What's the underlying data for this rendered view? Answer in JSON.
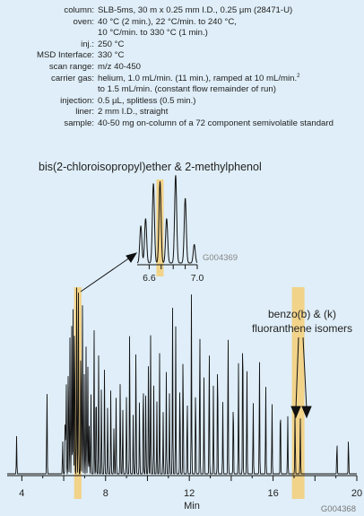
{
  "conditions": [
    {
      "key": "column:",
      "value": "SLB-5ms, 30 m x 0.25 mm I.D., 0.25 µm (28471-U)"
    },
    {
      "key": "oven:",
      "value": "40 °C (2 min.), 22 °C/min. to 240 °C,"
    },
    {
      "key": "",
      "value": "10 °C/min. to 330 °C (1 min.)"
    },
    {
      "key": "inj.:",
      "value": "250 °C"
    },
    {
      "key": "MSD Interface:",
      "value": "330 °C"
    },
    {
      "key": "scan range:",
      "value": "m/z 40-450"
    },
    {
      "key": "carrier gas:",
      "value": "helium, 1.0 mL/min. (11 min.), ramped at 10 mL/min.",
      "sup": "2"
    },
    {
      "key": "",
      "value": "to 1.5 mL/min.  (constant flow remainder of run)"
    },
    {
      "key": "injection:",
      "value": "0.5 µL, splitless (0.5 min.)"
    },
    {
      "key": "liner:",
      "value": "2 mm I.D., straight"
    },
    {
      "key": "sample:",
      "value": "40-50 mg on-column of a 72 component semivolatile standard"
    }
  ],
  "colors": {
    "trace": "#111111",
    "highlight": "#f2d38a",
    "background": "#dfeef8",
    "code": "#888888"
  },
  "chart_data": [
    {
      "type": "line",
      "title": "",
      "xlabel": "Min",
      "ylabel": "",
      "xlim": [
        3.3,
        20
      ],
      "ylim": [
        0,
        100
      ],
      "xticks": [
        4,
        8,
        12,
        16,
        20
      ],
      "xtick_labels": [
        "4",
        "8",
        "12",
        "16",
        "20"
      ],
      "grid": false,
      "figure_code": "G004368",
      "highlights": [
        {
          "from": 6.5,
          "to": 6.85
        },
        {
          "from": 16.9,
          "to": 17.5
        }
      ],
      "peaks": [
        {
          "t": 3.75,
          "h": 14
        },
        {
          "t": 5.2,
          "h": 33
        },
        {
          "t": 5.95,
          "h": 13
        },
        {
          "t": 6.07,
          "h": 23
        },
        {
          "t": 6.12,
          "h": 38
        },
        {
          "t": 6.22,
          "h": 46
        },
        {
          "t": 6.3,
          "h": 52
        },
        {
          "t": 6.38,
          "h": 57
        },
        {
          "t": 6.45,
          "h": 63
        },
        {
          "t": 6.52,
          "h": 66
        },
        {
          "t": 6.62,
          "h": 70
        },
        {
          "t": 6.7,
          "h": 72
        },
        {
          "t": 6.82,
          "h": 55
        },
        {
          "t": 6.9,
          "h": 65
        },
        {
          "t": 6.98,
          "h": 38
        },
        {
          "t": 7.07,
          "h": 48
        },
        {
          "t": 7.15,
          "h": 42
        },
        {
          "t": 7.22,
          "h": 18
        },
        {
          "t": 7.3,
          "h": 31
        },
        {
          "t": 7.45,
          "h": 56
        },
        {
          "t": 7.55,
          "h": 37
        },
        {
          "t": 7.67,
          "h": 45
        },
        {
          "t": 7.8,
          "h": 33
        },
        {
          "t": 7.95,
          "h": 41
        },
        {
          "t": 8.1,
          "h": 26
        },
        {
          "t": 8.25,
          "h": 33
        },
        {
          "t": 8.4,
          "h": 18
        },
        {
          "t": 8.5,
          "h": 29
        },
        {
          "t": 8.7,
          "h": 36
        },
        {
          "t": 8.82,
          "h": 25
        },
        {
          "t": 9.0,
          "h": 31
        },
        {
          "t": 9.15,
          "h": 56
        },
        {
          "t": 9.32,
          "h": 23
        },
        {
          "t": 9.45,
          "h": 49
        },
        {
          "t": 9.62,
          "h": 28
        },
        {
          "t": 9.8,
          "h": 39
        },
        {
          "t": 9.92,
          "h": 31
        },
        {
          "t": 10.05,
          "h": 45
        },
        {
          "t": 10.15,
          "h": 52
        },
        {
          "t": 10.3,
          "h": 33
        },
        {
          "t": 10.45,
          "h": 27
        },
        {
          "t": 10.58,
          "h": 45
        },
        {
          "t": 10.75,
          "h": 23
        },
        {
          "t": 10.9,
          "h": 38
        },
        {
          "t": 11.05,
          "h": 30
        },
        {
          "t": 11.2,
          "h": 62
        },
        {
          "t": 11.35,
          "h": 55
        },
        {
          "t": 11.55,
          "h": 36
        },
        {
          "t": 11.7,
          "h": 49
        },
        {
          "t": 11.9,
          "h": 30
        },
        {
          "t": 12.1,
          "h": 67
        },
        {
          "t": 12.3,
          "h": 35
        },
        {
          "t": 12.5,
          "h": 58
        },
        {
          "t": 12.7,
          "h": 36
        },
        {
          "t": 12.95,
          "h": 50
        },
        {
          "t": 13.15,
          "h": 33
        },
        {
          "t": 13.35,
          "h": 48
        },
        {
          "t": 13.6,
          "h": 27
        },
        {
          "t": 13.85,
          "h": 55
        },
        {
          "t": 14.1,
          "h": 31
        },
        {
          "t": 14.35,
          "h": 42
        },
        {
          "t": 14.55,
          "h": 62
        },
        {
          "t": 14.75,
          "h": 41
        },
        {
          "t": 15.05,
          "h": 28
        },
        {
          "t": 15.35,
          "h": 44
        },
        {
          "t": 15.65,
          "h": 34
        },
        {
          "t": 15.95,
          "h": 27
        },
        {
          "t": 16.35,
          "h": 29
        },
        {
          "t": 16.7,
          "h": 22
        },
        {
          "t": 17.05,
          "h": 25
        },
        {
          "t": 17.3,
          "h": 21
        },
        {
          "t": 19.05,
          "h": 13
        },
        {
          "t": 19.6,
          "h": 14
        }
      ],
      "annotations": [
        {
          "text": "benzo(b) & (k)",
          "x": 17.15,
          "y": 69
        },
        {
          "text": "fluoranthene isomers",
          "x": 17.15,
          "y": 64
        }
      ]
    },
    {
      "type": "line",
      "title": "bis(2-chloroisopropyl)ether & 2-methylphenol",
      "xlabel": "",
      "ylabel": "",
      "xlim": [
        6.5,
        7.0
      ],
      "ylim": [
        0,
        100
      ],
      "xticks": [
        6.6,
        7.0
      ],
      "xtick_labels": [
        "6.6",
        "7.0"
      ],
      "figure_code": "G004369",
      "highlights": [
        {
          "from": 6.66,
          "to": 6.72
        }
      ],
      "peaks": [
        {
          "t": 6.53,
          "h": 40
        },
        {
          "t": 6.57,
          "h": 48
        },
        {
          "t": 6.635,
          "h": 86
        },
        {
          "t": 6.69,
          "h": 88
        },
        {
          "t": 6.745,
          "h": 48
        },
        {
          "t": 6.82,
          "h": 95
        },
        {
          "t": 6.9,
          "h": 70
        },
        {
          "t": 6.975,
          "h": 20
        }
      ]
    }
  ]
}
